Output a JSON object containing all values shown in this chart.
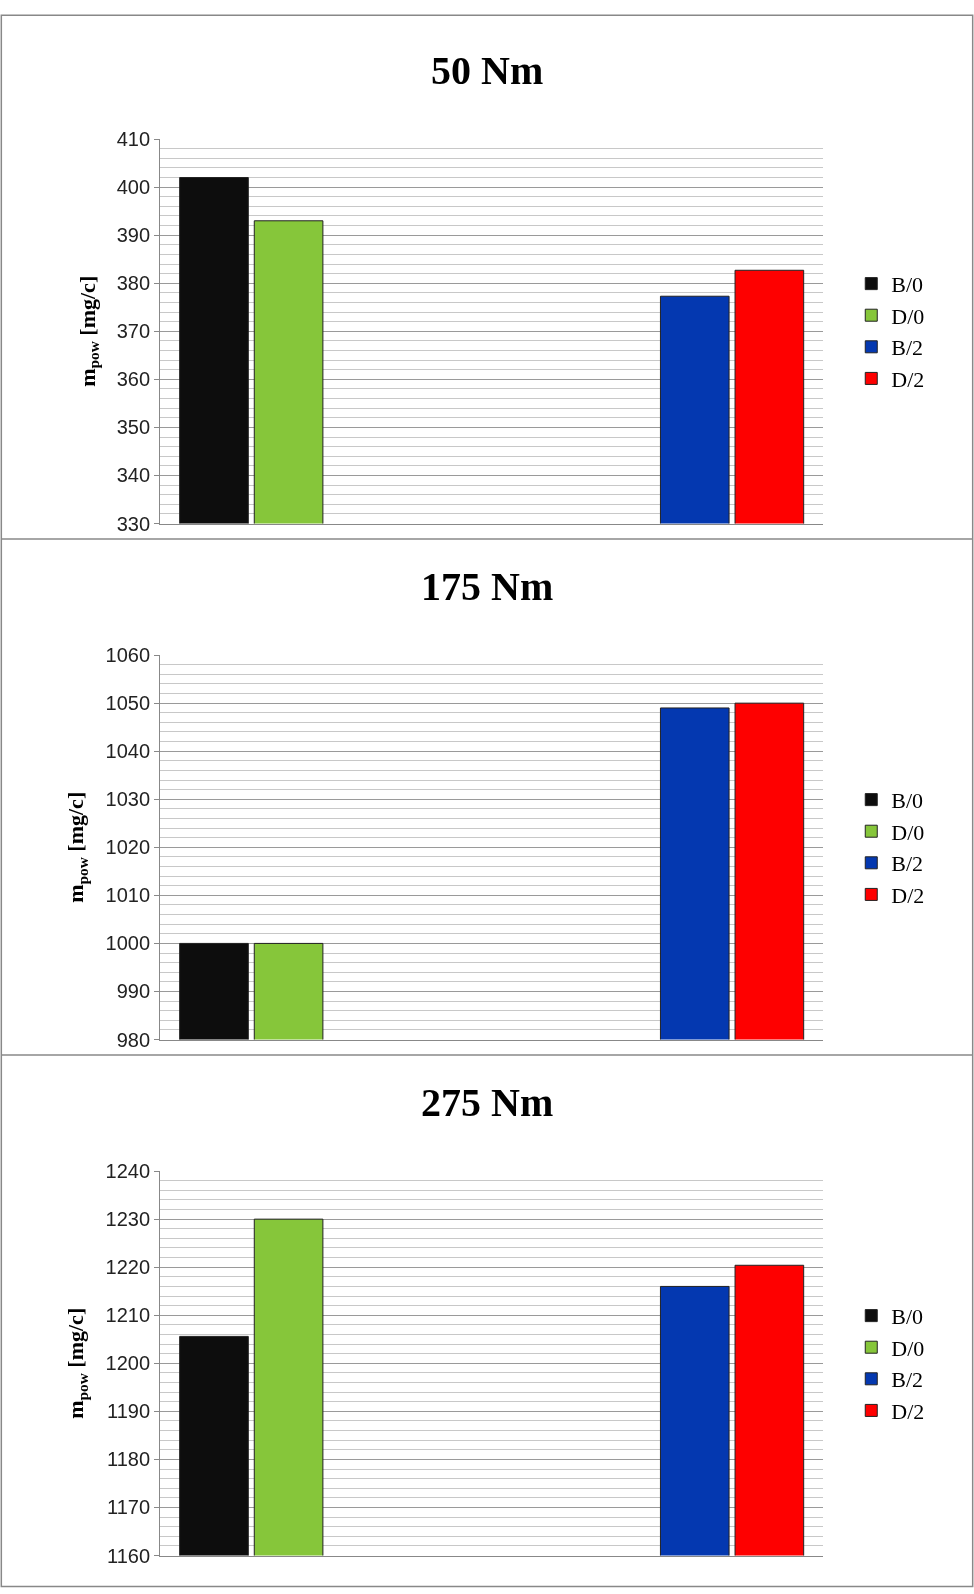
{
  "chart_data": [
    {
      "type": "bar",
      "title": "50 Nm",
      "ylabel": "m$_{pow}$ [mg/c]",
      "categories": [
        null,
        null
      ],
      "series": [
        {
          "name": "B/0",
          "color": "#0d0d0d",
          "values": [
            402,
            null
          ]
        },
        {
          "name": "D/0",
          "color": "#86c63a",
          "values": [
            393,
            null
          ]
        },
        {
          "name": "B/2",
          "color": "#0438b0",
          "values": [
            null,
            377.3
          ]
        },
        {
          "name": "D/2",
          "color": "#fe0000",
          "values": [
            null,
            382.7
          ]
        }
      ],
      "ylim": [
        330,
        410
      ],
      "yticks": [
        330,
        340,
        350,
        360,
        370,
        380,
        390,
        400,
        410
      ],
      "grid": "y",
      "legend": "right"
    },
    {
      "type": "bar",
      "title": "175 Nm",
      "ylabel": "m$_{pow}$ [mg/c]",
      "categories": [
        null,
        null
      ],
      "series": [
        {
          "name": "B/0",
          "color": "#0d0d0d",
          "values": [
            1000,
            null
          ]
        },
        {
          "name": "D/0",
          "color": "#86c63a",
          "values": [
            1000,
            null
          ]
        },
        {
          "name": "B/2",
          "color": "#0438b0",
          "values": [
            null,
            1049
          ]
        },
        {
          "name": "D/2",
          "color": "#fe0000",
          "values": [
            null,
            1050
          ]
        }
      ],
      "ylim": [
        980,
        1060
      ],
      "yticks": [
        980,
        990,
        1000,
        1010,
        1020,
        1030,
        1040,
        1050,
        1060
      ],
      "grid": "y",
      "legend": "right"
    },
    {
      "type": "bar",
      "title": "275 Nm",
      "ylabel": "m$_{pow}$ [mg/c]",
      "categories": [
        null,
        null
      ],
      "series": [
        {
          "name": "B/0",
          "color": "#0d0d0d",
          "values": [
            1205.6,
            null
          ]
        },
        {
          "name": "D/0",
          "color": "#86c63a",
          "values": [
            1230,
            null
          ]
        },
        {
          "name": "B/2",
          "color": "#0438b0",
          "values": [
            null,
            1216
          ]
        },
        {
          "name": "D/2",
          "color": "#fe0000",
          "values": [
            null,
            1220.4
          ]
        }
      ],
      "ylim": [
        1160,
        1240
      ],
      "yticks": [
        1160,
        1170,
        1180,
        1190,
        1200,
        1210,
        1220,
        1230,
        1240
      ],
      "grid": "y",
      "legend": "right"
    }
  ]
}
